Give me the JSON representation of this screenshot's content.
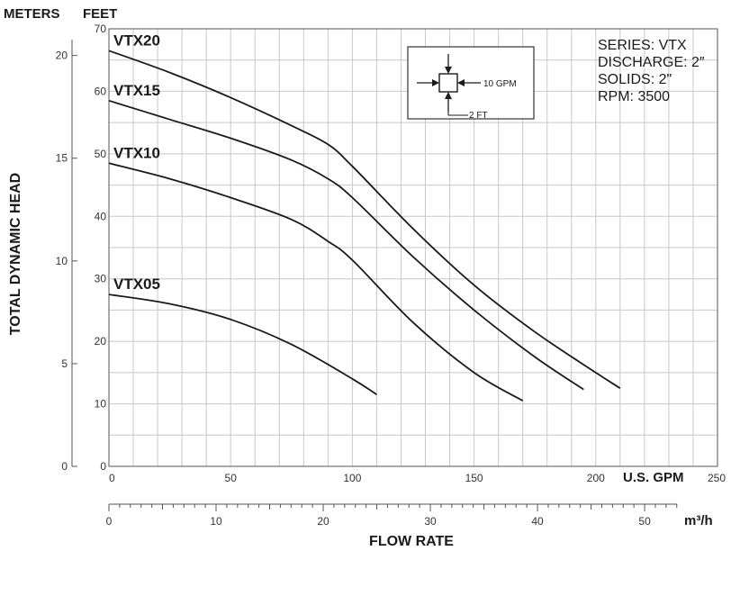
{
  "chart_data": {
    "type": "line",
    "grid": true,
    "x_primary": {
      "unit_label": "U.S. GPM",
      "range": [
        0,
        250
      ],
      "ticks": [
        0,
        50,
        100,
        150,
        200,
        250
      ],
      "tick_labels": [
        "0",
        "50",
        "100",
        "150",
        "200",
        "250"
      ]
    },
    "x_secondary": {
      "unit_label": "m³/h",
      "range": [
        0,
        55
      ],
      "ticks": [
        0,
        10,
        20,
        30,
        40,
        50
      ],
      "tick_labels": [
        "0",
        "10",
        "20",
        "30",
        "40",
        "50"
      ]
    },
    "xlabel": "FLOW RATE",
    "y_primary": {
      "unit_label": "FEET",
      "range": [
        0,
        70
      ],
      "ticks": [
        0,
        10,
        20,
        30,
        40,
        50,
        60,
        70
      ],
      "tick_labels": [
        "0",
        "10",
        "20",
        "30",
        "40",
        "50",
        "60",
        "70"
      ]
    },
    "y_secondary": {
      "unit_label": "METERS",
      "range": [
        0,
        21.3
      ],
      "ticks": [
        0,
        5,
        10,
        15,
        20
      ],
      "tick_labels": [
        "0",
        "5",
        "10",
        "15",
        "20"
      ]
    },
    "ylabel": "TOTAL DYNAMIC HEAD",
    "series": [
      {
        "name": "VTX20",
        "x": [
          0,
          25,
          50,
          75,
          90,
          100,
          125,
          150,
          175,
          200,
          210
        ],
        "y": [
          66.5,
          63.0,
          59.0,
          54.5,
          51.5,
          48.0,
          38.0,
          29.0,
          21.5,
          15.0,
          12.5
        ]
      },
      {
        "name": "VTX15",
        "x": [
          0,
          25,
          50,
          75,
          90,
          100,
          125,
          150,
          175,
          195
        ],
        "y": [
          58.5,
          55.5,
          52.5,
          49.0,
          46.0,
          43.0,
          33.5,
          25.0,
          17.5,
          12.3
        ]
      },
      {
        "name": "VTX10",
        "x": [
          0,
          25,
          50,
          75,
          90,
          100,
          125,
          150,
          170
        ],
        "y": [
          48.5,
          46.0,
          43.0,
          39.5,
          36.0,
          33.0,
          23.0,
          15.0,
          10.5
        ]
      },
      {
        "name": "VTX05",
        "x": [
          0,
          25,
          50,
          75,
          100,
          110
        ],
        "y": [
          27.5,
          26.0,
          23.5,
          19.5,
          14.0,
          11.5
        ]
      }
    ],
    "info_box": [
      "SERIES: VTX",
      "DISCHARGE: 2″",
      "SOLIDS: 2\"",
      "RPM: 3500"
    ],
    "scale_legend": {
      "gpm_label": "10 GPM",
      "ft_label": "2 FT"
    },
    "line_color": "#1a1a1a",
    "grid_color": "#c8c8c8"
  }
}
